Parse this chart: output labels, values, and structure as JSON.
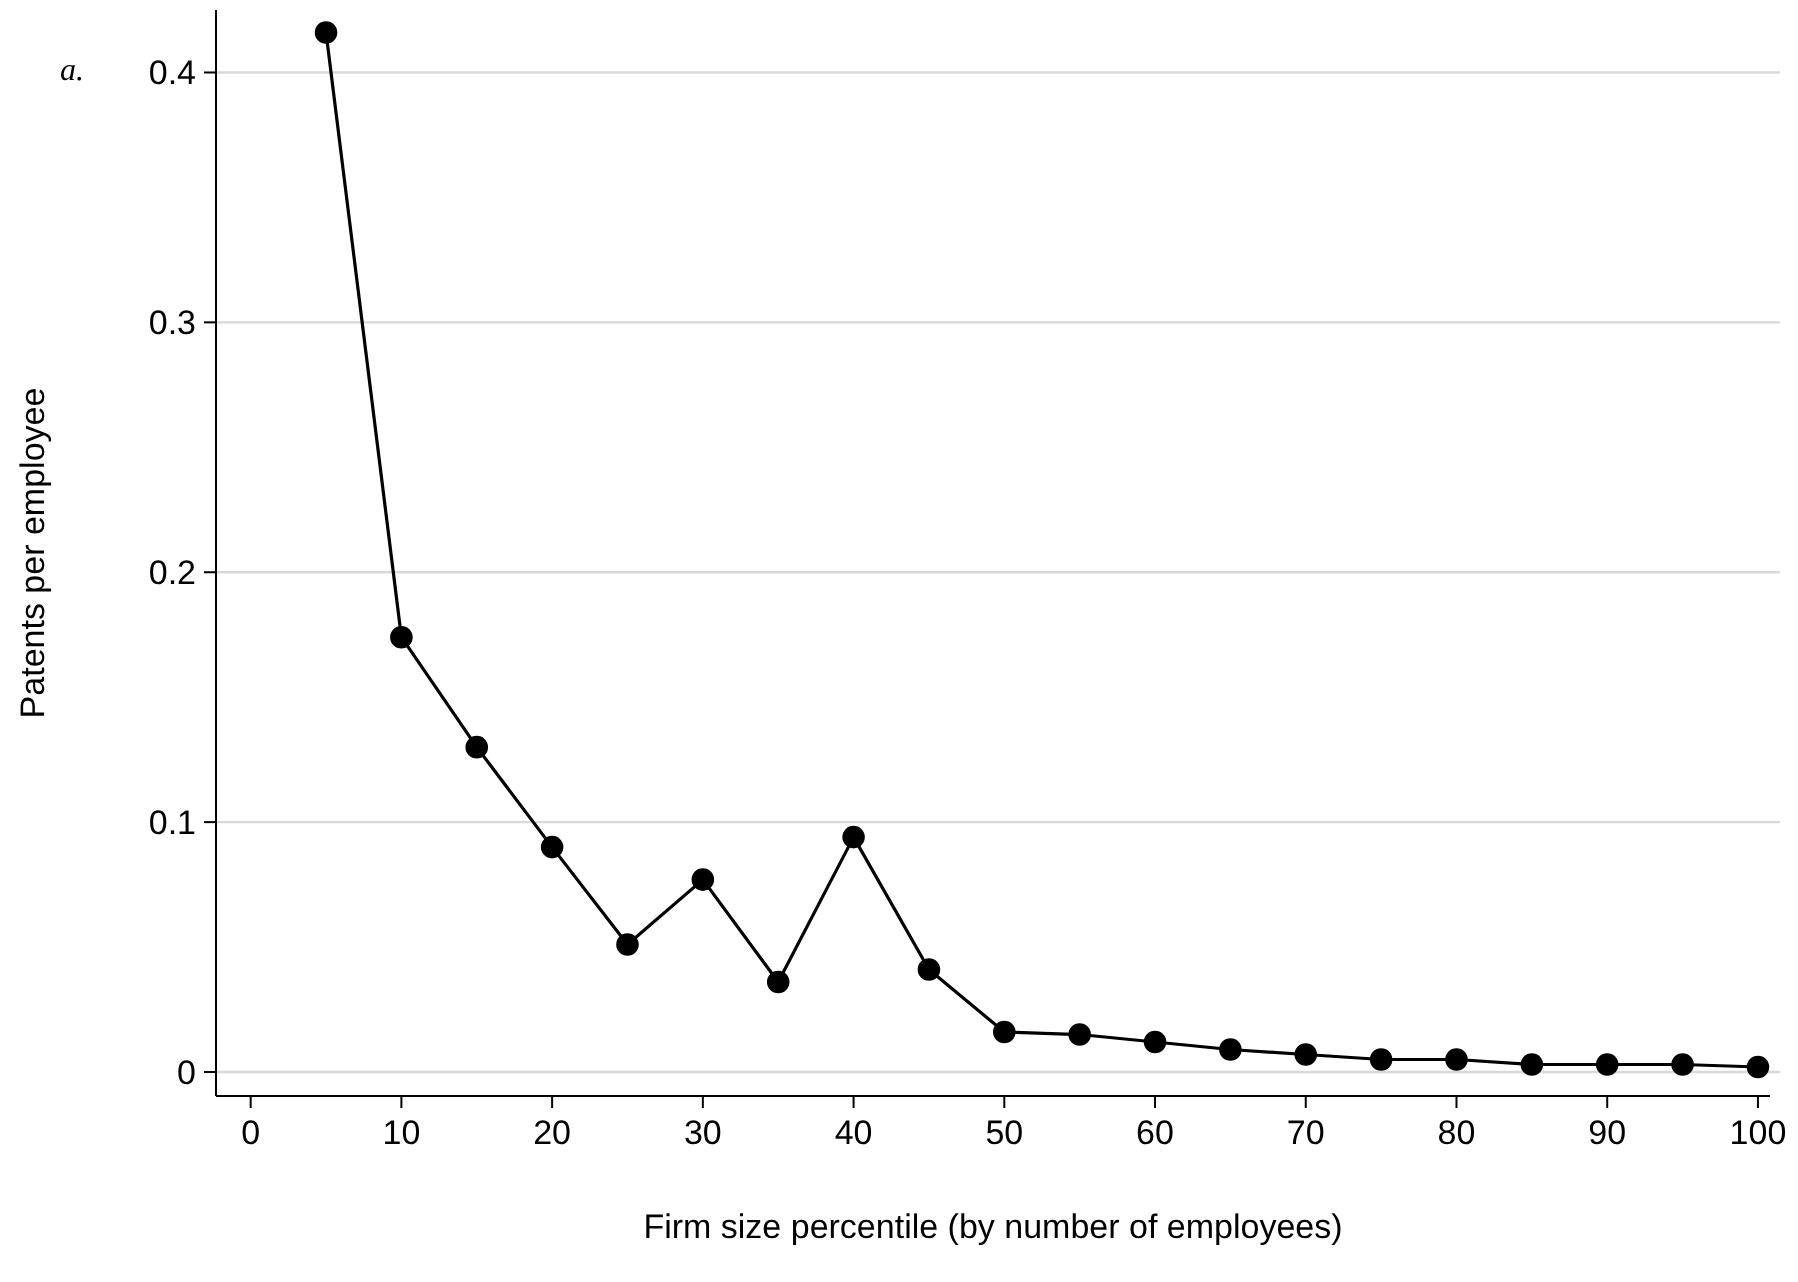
{
  "chart_data": {
    "type": "line",
    "xlabel": "Firm size percentile (by number of employees)",
    "ylabel": "Patents per employee",
    "annotations": [
      "a."
    ],
    "x": [
      5,
      10,
      15,
      20,
      25,
      30,
      35,
      40,
      45,
      50,
      55,
      60,
      65,
      70,
      75,
      80,
      85,
      90,
      95,
      100
    ],
    "series": [
      {
        "color": "#000000",
        "values": [
          0.416,
          0.174,
          0.13,
          0.09,
          0.051,
          0.077,
          0.036,
          0.094,
          0.041,
          0.016,
          0.015,
          0.012,
          0.009,
          0.007,
          0.005,
          0.005,
          0.003,
          0.003,
          0.003,
          0.002
        ]
      }
    ],
    "xlim": [
      -2.3,
      100.8
    ],
    "xticks": [
      0,
      10,
      20,
      30,
      40,
      50,
      60,
      70,
      80,
      90,
      100
    ],
    "ylim": [
      -0.0096,
      0.425
    ],
    "yticks": [
      0,
      0.1,
      0.2,
      0.3,
      0.4
    ],
    "grid": "y",
    "marker": "circle",
    "line_style": "solid"
  }
}
